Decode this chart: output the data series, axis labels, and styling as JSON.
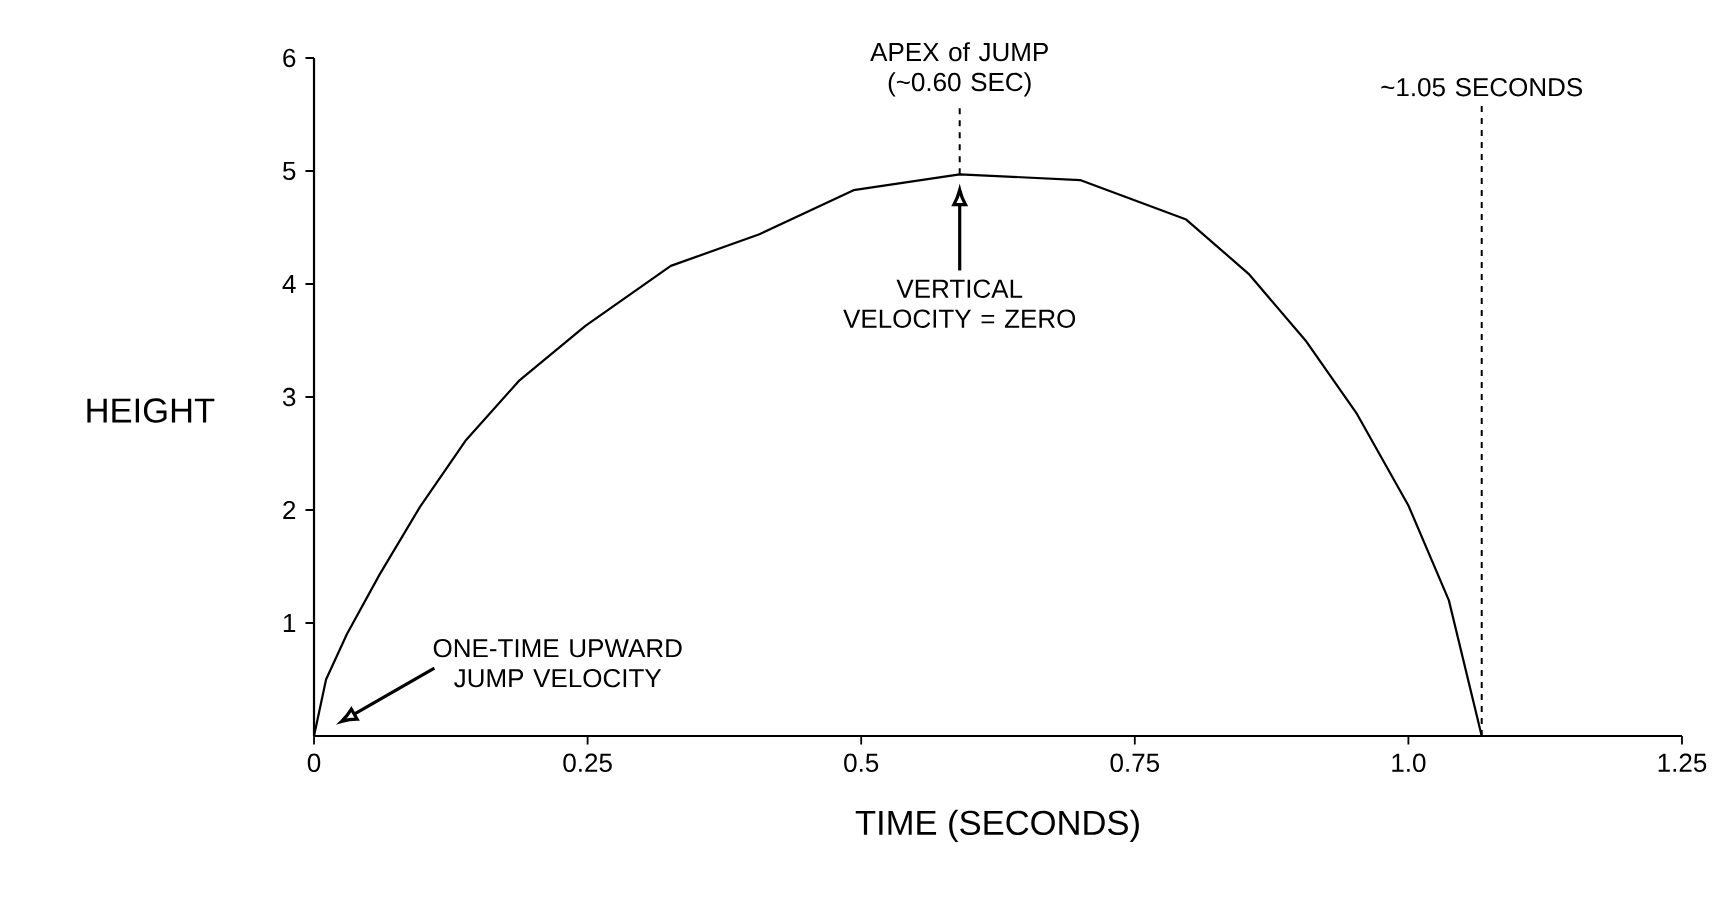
{
  "chart_data": {
    "type": "line",
    "xlabel": "TIME (SECONDS)",
    "ylabel": "HEIGHT",
    "x": [
      0,
      0.011,
      0.03,
      0.06,
      0.097,
      0.139,
      0.188,
      0.248,
      0.326,
      0.407,
      0.493,
      0.59,
      0.7,
      0.797,
      0.854,
      0.906,
      0.953,
      1.0,
      1.037,
      1.067
    ],
    "series": [
      {
        "color": "#000000",
        "values": [
          0,
          0.5,
          0.9,
          1.43,
          2.03,
          2.62,
          3.15,
          3.63,
          4.16,
          4.44,
          4.83,
          4.97,
          4.92,
          4.57,
          4.09,
          3.5,
          2.85,
          2.04,
          1.2,
          0
        ]
      }
    ],
    "xlim": [
      0,
      1.25
    ],
    "ylim": [
      0,
      6
    ],
    "xticks": [
      0,
      0.25,
      0.5,
      0.75,
      {
        "value": 1,
        "label": "1.0"
      },
      1.25
    ],
    "yticks": [
      1,
      2,
      3,
      4,
      5,
      6
    ],
    "marker": "none",
    "line_style": "solid",
    "ref_lines": [
      {
        "axis": "x",
        "value": 0.59,
        "label": "APEX of JUMP (~0.60 SEC)",
        "line_style": "dashed"
      },
      {
        "axis": "x",
        "value": 1.067,
        "label": "~1.05 SECONDS",
        "line_style": "dashed"
      }
    ],
    "annotations": [
      "VERTICAL VELOCITY = ZERO",
      "ONE-TIME UPWARD JUMP VELOCITY"
    ]
  }
}
